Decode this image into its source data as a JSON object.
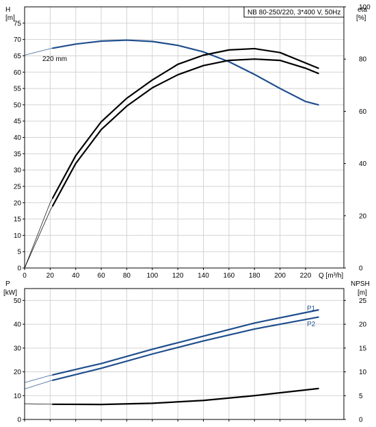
{
  "chart_data": [
    {
      "type": "line",
      "panel": "top",
      "title_box": "NB 80-250/220, 3*400 V, 50Hz",
      "y_left_label": "H",
      "y_left_unit": "[m]",
      "y_right_label": "eta",
      "y_right_unit": "[%]",
      "x_label": "Q [m³/h]",
      "x_ticks": [
        "0",
        "20",
        "40",
        "60",
        "80",
        "100",
        "120",
        "140",
        "160",
        "180",
        "200",
        "220"
      ],
      "y_left_ticks": [
        "0",
        "5",
        "10",
        "15",
        "20",
        "25",
        "30",
        "35",
        "40",
        "45",
        "50",
        "55",
        "60",
        "65",
        "70",
        "75"
      ],
      "y_right_ticks": [
        "0",
        "20",
        "40",
        "60",
        "80",
        "100"
      ],
      "xlim": [
        0,
        250
      ],
      "ylim_left": [
        0,
        80
      ],
      "ylim_right": [
        0,
        100
      ],
      "curve_annotation": "220 mm",
      "series": [
        {
          "name": "H",
          "axis": "left",
          "color": "#1f4e8c",
          "x": [
            0,
            20,
            40,
            60,
            80,
            100,
            120,
            140,
            160,
            180,
            200,
            220,
            230
          ],
          "y": [
            65.2,
            67.2,
            68.6,
            69.5,
            69.8,
            69.4,
            68.2,
            66.2,
            63.2,
            59.3,
            55.0,
            51.0,
            50.0
          ],
          "bold_from_x": 22
        },
        {
          "name": "eta (upper)",
          "axis": "right",
          "color": "#000000",
          "x": [
            0,
            20,
            40,
            60,
            80,
            100,
            120,
            140,
            160,
            180,
            200,
            220,
            230
          ],
          "y": [
            0,
            25,
            43,
            56,
            65,
            72,
            78,
            81.5,
            83.5,
            84,
            82.5,
            78.5,
            76.5
          ],
          "bold_from_x": 22
        },
        {
          "name": "eta (lower)",
          "axis": "right",
          "color": "#000000",
          "x": [
            0,
            20,
            40,
            60,
            80,
            100,
            120,
            140,
            160,
            180,
            200,
            220,
            230
          ],
          "y": [
            0,
            22,
            40,
            53,
            62,
            69,
            74,
            77.5,
            79.5,
            80,
            79.5,
            76.5,
            74.5
          ],
          "bold_from_x": 22
        }
      ]
    },
    {
      "type": "line",
      "panel": "bottom",
      "y_left_label": "P",
      "y_left_unit": "[kW]",
      "y_right_label": "NPSH",
      "y_right_unit": "[m]",
      "y_left_ticks": [
        "0",
        "10",
        "20",
        "30",
        "40",
        "50"
      ],
      "y_right_ticks": [
        "0",
        "5",
        "10",
        "15",
        "20",
        "25"
      ],
      "xlim": [
        0,
        250
      ],
      "ylim_left": [
        0,
        55
      ],
      "ylim_right": [
        0,
        27.5
      ],
      "series": [
        {
          "name": "P1",
          "axis": "left",
          "color": "#1f4e8c",
          "x": [
            0,
            20,
            60,
            100,
            140,
            180,
            230
          ],
          "y": [
            15.5,
            18.5,
            23.5,
            29.5,
            35,
            40.5,
            46
          ],
          "bold_from_x": 22
        },
        {
          "name": "P2",
          "axis": "left",
          "color": "#1f4e8c",
          "x": [
            0,
            20,
            60,
            100,
            140,
            180,
            230
          ],
          "y": [
            12.8,
            16.2,
            21.5,
            27.5,
            33,
            38,
            43
          ],
          "bold_from_x": 22
        },
        {
          "name": "NPSH",
          "axis": "right",
          "color": "#000000",
          "x": [
            0,
            20,
            60,
            100,
            140,
            180,
            230
          ],
          "y": [
            3.3,
            3.2,
            3.15,
            3.4,
            4.0,
            5.0,
            6.5
          ],
          "bold_from_x": 22
        }
      ]
    }
  ]
}
